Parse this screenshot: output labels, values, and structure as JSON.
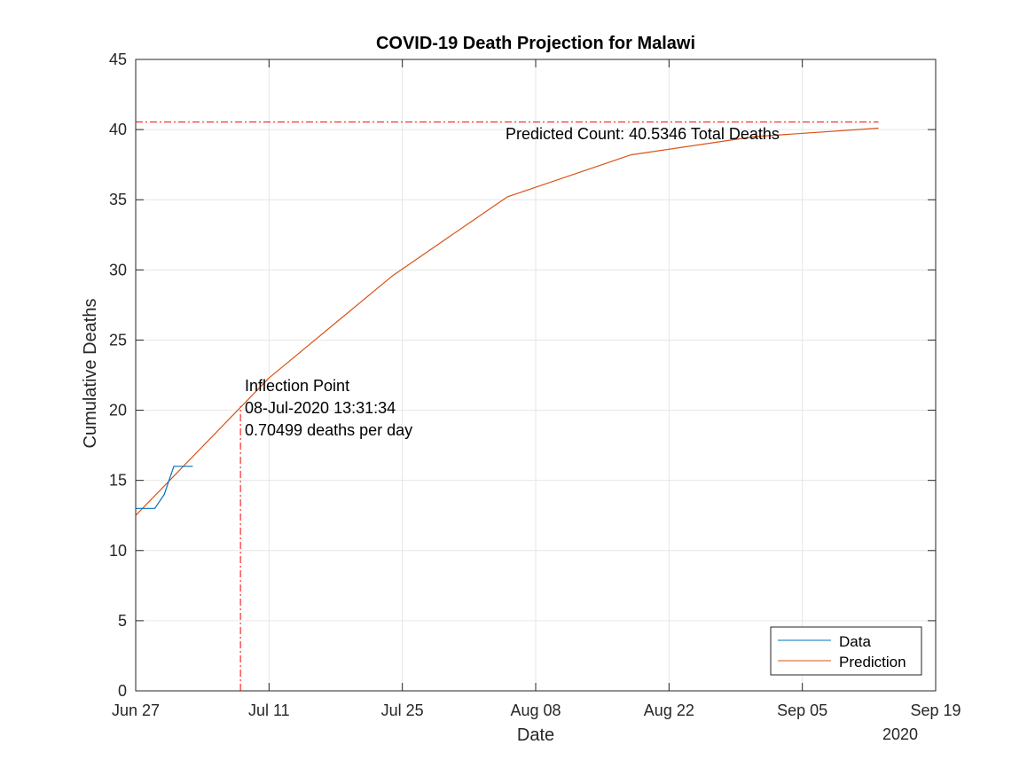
{
  "chart_data": {
    "type": "line",
    "title": "COVID-19 Death Projection for Malawi",
    "xlabel": "Date",
    "ylabel": "Cumulative Deaths",
    "year_label": "2020",
    "x_ticks": [
      "Jun 27",
      "Jul 11",
      "Jul 25",
      "Aug 08",
      "Aug 22",
      "Sep 05",
      "Sep 19"
    ],
    "x_tick_dates": [
      "2020-06-27",
      "2020-07-11",
      "2020-07-25",
      "2020-08-08",
      "2020-08-22",
      "2020-09-05",
      "2020-09-19"
    ],
    "xlim": [
      "2020-06-27",
      "2020-09-19"
    ],
    "y_ticks": [
      "0",
      "5",
      "10",
      "15",
      "20",
      "25",
      "30",
      "35",
      "40",
      "45"
    ],
    "ylim": [
      0,
      45
    ],
    "grid": true,
    "legend_position": "bottom-right",
    "series": [
      {
        "name": "Data",
        "color": "#0072BD",
        "points": [
          {
            "x": "2020-06-27",
            "y": 13
          },
          {
            "x": "2020-06-28",
            "y": 13
          },
          {
            "x": "2020-06-29",
            "y": 13
          },
          {
            "x": "2020-06-30",
            "y": 14
          },
          {
            "x": "2020-07-01",
            "y": 16
          },
          {
            "x": "2020-07-02",
            "y": 16
          },
          {
            "x": "2020-07-03",
            "y": 16
          }
        ]
      },
      {
        "name": "Prediction",
        "color": "#D95319",
        "points": [
          {
            "x": "2020-06-27",
            "y": 12.5
          },
          {
            "x": "2020-07-11",
            "y": 22.3
          },
          {
            "x": "2020-07-24",
            "y": 29.6
          },
          {
            "x": "2020-08-05",
            "y": 35.2
          },
          {
            "x": "2020-08-18",
            "y": 38.2
          },
          {
            "x": "2020-08-31",
            "y": 39.5
          },
          {
            "x": "2020-09-13",
            "y": 40.1
          }
        ]
      }
    ],
    "reference_lines": [
      {
        "orientation": "horizontal",
        "y": 40.5346,
        "x_from": "2020-06-27",
        "x_to": "2020-09-13",
        "color": "#FF0000",
        "style": "dash-dot"
      },
      {
        "orientation": "vertical",
        "x": "2020-07-08",
        "y_from": 0,
        "y_to": 20.3,
        "color": "#FF0000",
        "style": "dash-dot"
      }
    ],
    "annotations": {
      "predicted_count": "Predicted Count: 40.5346 Total Deaths",
      "inflection_line1": "Inflection Point",
      "inflection_line2": "08-Jul-2020 13:31:34",
      "inflection_line3": "0.70499 deaths per day"
    }
  }
}
